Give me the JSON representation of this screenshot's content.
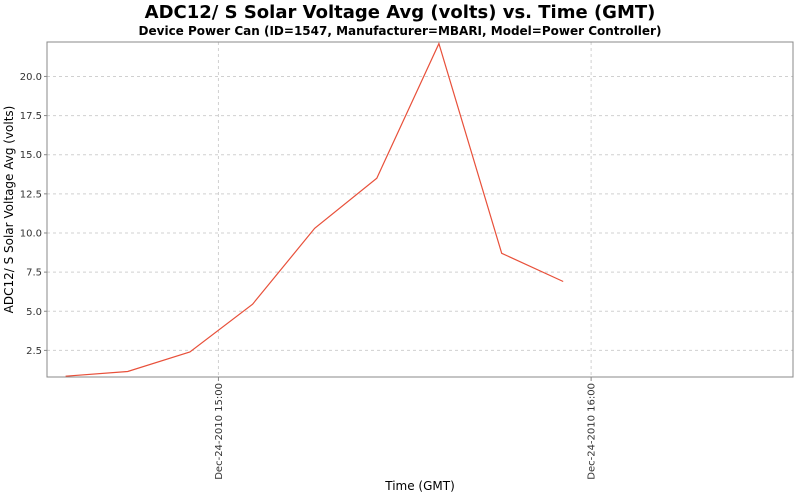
{
  "chart_data": {
    "type": "line",
    "title": "ADC12/ S Solar Voltage Avg (volts) vs. Time (GMT)",
    "subtitle": "Device Power Can (ID=1547, Manufacturer=MBARI, Model=Power Controller)",
    "xlabel": "Time (GMT)",
    "ylabel": "ADC12/ S Solar Voltage Avg (volts)",
    "x_ticks": [
      {
        "minute": 0,
        "label": "Dec-24-2010 15:00"
      },
      {
        "minute": 60,
        "label": "Dec-24-2010 16:00"
      }
    ],
    "xlim_minutes": [
      -27.6,
      92.5
    ],
    "y_ticks": [
      2.5,
      5.0,
      7.5,
      10.0,
      12.5,
      15.0,
      17.5,
      20.0
    ],
    "ylim": [
      0.8,
      22.2
    ],
    "grid": true,
    "series": [
      {
        "color": "#e8503a",
        "x_minutes": [
          -24.6,
          -14.6,
          -4.6,
          5.5,
          15.5,
          25.5,
          35.5,
          45.6,
          55.5
        ],
        "values": [
          0.85,
          1.15,
          2.4,
          5.45,
          10.3,
          13.5,
          22.1,
          8.7,
          6.9
        ]
      }
    ]
  }
}
